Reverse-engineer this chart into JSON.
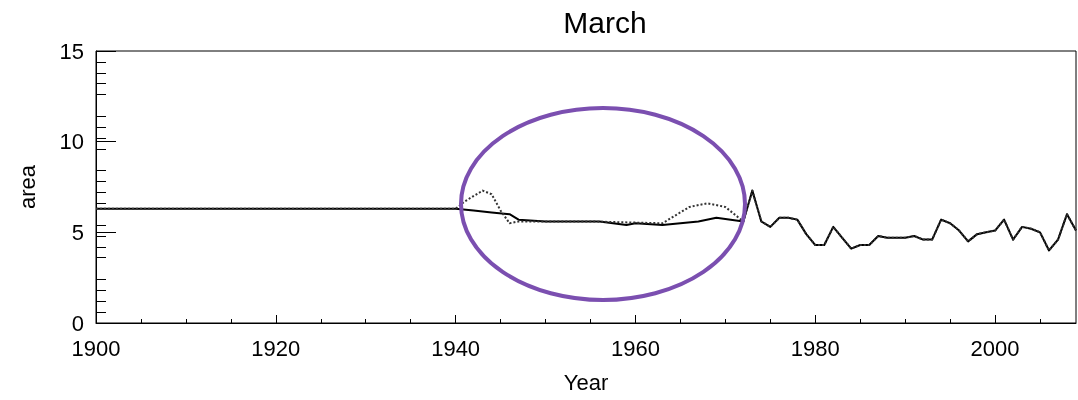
{
  "chart_data": {
    "type": "line",
    "title": "March",
    "xlabel": "Year",
    "ylabel": "area",
    "xlim": [
      1900,
      2009
    ],
    "xticks": [
      1900,
      1920,
      1940,
      1960,
      1980,
      2000
    ],
    "ylim": [
      0,
      15
    ],
    "yticks": [
      0,
      5,
      10,
      15
    ],
    "grid": false,
    "marker": "none",
    "series": [
      {
        "color": "#333333",
        "line_style": "dotted",
        "x": [
          1900,
          1940,
          1941,
          1943,
          1944,
          1945,
          1946,
          1947,
          1955,
          1963,
          1964,
          1966,
          1968,
          1970,
          1971,
          1972,
          1973,
          1974,
          1975,
          1976,
          1977,
          1978,
          1979,
          1980,
          1981,
          1982,
          1983,
          1984,
          1985,
          1986,
          1987,
          1988,
          1989,
          1990,
          1991,
          1992,
          1993,
          1994,
          1995,
          1996,
          1997,
          1998,
          1999,
          2000,
          2001,
          2002,
          2003,
          2004,
          2005,
          2006,
          2007,
          2008,
          2009
        ],
        "values": [
          6.3,
          6.3,
          6.7,
          7.3,
          7.1,
          6.2,
          5.5,
          5.6,
          5.6,
          5.5,
          5.8,
          6.4,
          6.6,
          6.4,
          6.0,
          5.6,
          7.3,
          5.6,
          5.3,
          5.8,
          5.8,
          5.7,
          4.9,
          4.3,
          4.3,
          5.3,
          4.7,
          4.1,
          4.3,
          4.3,
          4.8,
          4.7,
          4.7,
          4.7,
          4.8,
          4.6,
          4.6,
          5.7,
          5.5,
          5.1,
          4.5,
          4.9,
          5.0,
          5.1,
          5.7,
          4.6,
          5.3,
          5.2,
          5.0,
          4.0,
          4.6,
          6.0,
          5.1
        ]
      },
      {
        "color": "#000000",
        "line_style": "solid",
        "x": [
          1900,
          1940,
          1942,
          1944,
          1946,
          1947,
          1950,
          1956,
          1959,
          1960,
          1963,
          1967,
          1969,
          1972,
          1973,
          1974,
          1975,
          1976,
          1977,
          1978,
          1979,
          1980,
          1981,
          1982,
          1983,
          1984,
          1985,
          1986,
          1987,
          1988,
          1989,
          1990,
          1991,
          1992,
          1993,
          1994,
          1995,
          1996,
          1997,
          1998,
          1999,
          2000,
          2001,
          2002,
          2003,
          2004,
          2005,
          2006,
          2007,
          2008,
          2009
        ],
        "values": [
          6.3,
          6.3,
          6.2,
          6.1,
          6.0,
          5.7,
          5.6,
          5.6,
          5.4,
          5.5,
          5.4,
          5.6,
          5.8,
          5.6,
          7.3,
          5.6,
          5.3,
          5.8,
          5.8,
          5.7,
          4.9,
          4.3,
          4.3,
          5.3,
          4.7,
          4.1,
          4.3,
          4.3,
          4.8,
          4.7,
          4.7,
          4.7,
          4.8,
          4.6,
          4.6,
          5.7,
          5.5,
          5.1,
          4.5,
          4.9,
          5.0,
          5.1,
          5.7,
          4.6,
          5.3,
          5.2,
          5.0,
          4.0,
          4.6,
          6.0,
          5.1
        ]
      }
    ]
  }
}
